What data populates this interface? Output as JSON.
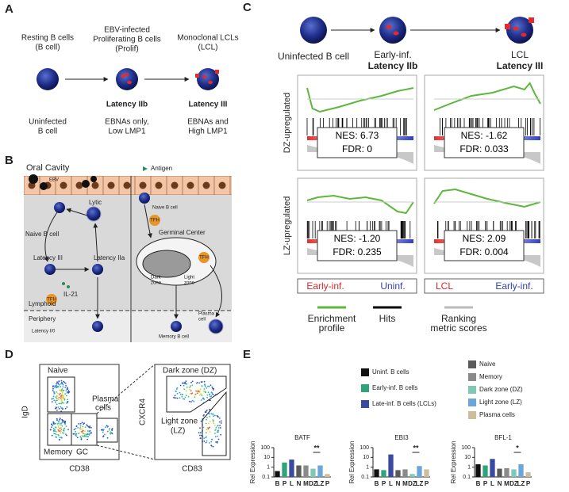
{
  "panel_a": {
    "letter": "A",
    "stages": [
      {
        "heading": [
          "Resting B cells",
          "(B cell)"
        ],
        "description": [
          "Uninfected",
          "B cell"
        ]
      },
      {
        "heading": [
          "EBV-infected",
          "Proliferating B cells",
          "(Prolif)"
        ],
        "latency": "Latency IIb",
        "description": [
          "EBNAs only,",
          "Low LMP1"
        ]
      },
      {
        "heading": [
          "Monoclonal LCLs",
          "(LCL)"
        ],
        "latency": "Latency III",
        "description": [
          "EBNAs and",
          "High LMP1"
        ]
      }
    ]
  },
  "panel_b": {
    "letter": "B",
    "oral_cavity": "Oral Cavity",
    "ebv": "EBV",
    "antigen": "Antigen",
    "lytic": "Lytic",
    "naive_left": "Naive B cell",
    "latency_iii": "Latency III",
    "latency_iia": "Latency IIa",
    "il21": "IL-21",
    "tfh": "TFH",
    "germinal_center": "Germinal Center",
    "dark_zone": [
      "Dark",
      "zone"
    ],
    "light_zone": [
      "Light",
      "zone"
    ],
    "lymphoid": "Lymphoid",
    "periphery": "Periphery",
    "latency_i0": "Latency I/0",
    "plasma_cell": [
      "Plasma",
      "cell"
    ],
    "memory": "Memory B cell",
    "naive_right": "Naive B cell"
  },
  "panel_c": {
    "letter": "C",
    "stages": [
      {
        "name": "Uninfected B cell"
      },
      {
        "name": "Early-inf.",
        "latency": "Latency IIb"
      },
      {
        "name": "LCL",
        "latency": "Latency III"
      }
    ],
    "row_labels": [
      "DZ-upregulated",
      "LZ-upregulated"
    ],
    "plots": [
      {
        "nes": "NES: 6.73",
        "fdr": "FDR: 0"
      },
      {
        "nes": "NES: -1.62",
        "fdr": "FDR: 0.033"
      },
      {
        "nes": "NES: -1.20",
        "fdr": "FDR: 0.235"
      },
      {
        "nes": "NES: 2.09",
        "fdr": "FDR: 0.004"
      }
    ],
    "comparisons": [
      [
        "Early-inf.",
        "Uninf."
      ],
      [
        "LCL",
        "Early-inf."
      ]
    ],
    "legend": [
      {
        "label": [
          "Enrichment",
          "profile"
        ],
        "color": "#5cb83a"
      },
      {
        "label": [
          "Hits"
        ],
        "color": "#000000"
      },
      {
        "label": [
          "Ranking",
          "metric scores"
        ],
        "color": "#bbbbbb"
      }
    ]
  },
  "panel_d": {
    "letter": "D",
    "left": {
      "y_label": "IgD",
      "x_label": "CD38",
      "naive": "Naive",
      "plasma": [
        "Plasma",
        "cells"
      ],
      "memory": "Memory",
      "gc": "GC"
    },
    "right": {
      "y_label": "CXCR4",
      "x_label": "CD83",
      "dark": "Dark zone (DZ)",
      "light": [
        "Light zone",
        "(LZ)"
      ]
    }
  },
  "panel_e": {
    "letter": "E",
    "legend": [
      {
        "label": "Uninf. B cells",
        "color": "#111111"
      },
      {
        "label": "Early-inf. B cells",
        "color": "#2fa37a"
      },
      {
        "label": "Late-inf. B cells (LCLs)",
        "color": "#3a4aa0"
      },
      {
        "label": "Naive",
        "color": "#5a5a5a"
      },
      {
        "label": "Memory",
        "color": "#8a8a8a"
      },
      {
        "label": "Dark zone (DZ)",
        "color": "#7ec8b5"
      },
      {
        "label": "Light zone (LZ)",
        "color": "#6aa6d9"
      },
      {
        "label": "Plasma cells",
        "color": "#cdbd9a"
      }
    ]
  },
  "chart_data": [
    {
      "type": "bar",
      "title": "BATF",
      "ylabel": "Rel Expression",
      "log_scale": true,
      "categories": [
        "B",
        "P",
        "L",
        "N",
        "M",
        "DZ",
        "LZ",
        "P"
      ],
      "values": [
        0.4,
        3,
        6,
        1.5,
        1.5,
        0.7,
        1.5,
        0.2
      ],
      "colors": [
        "#111111",
        "#2fa37a",
        "#3a4aa0",
        "#5a5a5a",
        "#8a8a8a",
        "#7ec8b5",
        "#6aa6d9",
        "#cdbd9a"
      ],
      "ylim": [
        0.1,
        100
      ],
      "yticks": [
        0.1,
        1,
        10,
        100
      ],
      "annotation": "**"
    },
    {
      "type": "bar",
      "title": "EBI3",
      "ylabel": "Rel Expression",
      "log_scale": true,
      "categories": [
        "B",
        "P",
        "L",
        "N",
        "M",
        "DZ",
        "LZ",
        "P"
      ],
      "values": [
        0.6,
        0.5,
        20,
        0.5,
        0.6,
        0.2,
        1.3,
        0.6
      ],
      "colors": [
        "#111111",
        "#2fa37a",
        "#3a4aa0",
        "#5a5a5a",
        "#8a8a8a",
        "#7ec8b5",
        "#6aa6d9",
        "#cdbd9a"
      ],
      "ylim": [
        0.1,
        100
      ],
      "yticks": [
        0.1,
        1,
        10,
        100
      ],
      "annotation": "**"
    },
    {
      "type": "bar",
      "title": "BFL-1",
      "ylabel": "Rel Expression",
      "log_scale": true,
      "categories": [
        "B",
        "P",
        "L",
        "N",
        "M",
        "DZ",
        "LZ",
        "P"
      ],
      "values": [
        2,
        1.5,
        7,
        0.7,
        0.8,
        0.6,
        2,
        0.3
      ],
      "colors": [
        "#111111",
        "#2fa37a",
        "#3a4aa0",
        "#5a5a5a",
        "#8a8a8a",
        "#7ec8b5",
        "#6aa6d9",
        "#cdbd9a"
      ],
      "ylim": [
        0.1,
        100
      ],
      "yticks": [
        0.1,
        1,
        10,
        100
      ],
      "annotation": "*"
    }
  ]
}
